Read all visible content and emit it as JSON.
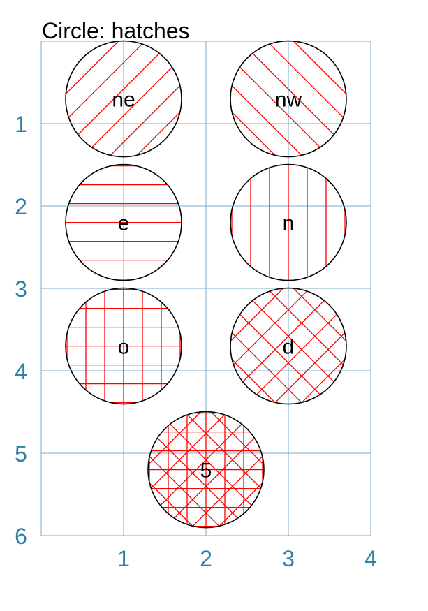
{
  "title": "Circle: hatches",
  "colors": {
    "grid": "#7aaed0",
    "tick_label": "#2f7fa6",
    "hatch": "#ff0000",
    "outline": "#000000"
  },
  "axes": {
    "x_ticks": [
      "1",
      "2",
      "3",
      "4"
    ],
    "y_ticks": [
      "1",
      "2",
      "3",
      "4",
      "5",
      "6"
    ],
    "xlim": [
      0,
      4
    ],
    "ylim": [
      0,
      6
    ],
    "y_inverted": true
  },
  "circles": [
    {
      "label": "ne",
      "cx": 1.0,
      "cy": 0.7,
      "r": 0.7,
      "hatch": "ne"
    },
    {
      "label": "nw",
      "cx": 3.0,
      "cy": 0.7,
      "r": 0.7,
      "hatch": "nw"
    },
    {
      "label": "e",
      "cx": 1.0,
      "cy": 2.2,
      "r": 0.7,
      "hatch": "e"
    },
    {
      "label": "n",
      "cx": 3.0,
      "cy": 2.2,
      "r": 0.7,
      "hatch": "n"
    },
    {
      "label": "o",
      "cx": 1.0,
      "cy": 3.7,
      "r": 0.7,
      "hatch": "o"
    },
    {
      "label": "d",
      "cx": 3.0,
      "cy": 3.7,
      "r": 0.7,
      "hatch": "d"
    },
    {
      "label": "5",
      "cx": 2.0,
      "cy": 5.2,
      "r": 0.7,
      "hatch": "5"
    }
  ]
}
